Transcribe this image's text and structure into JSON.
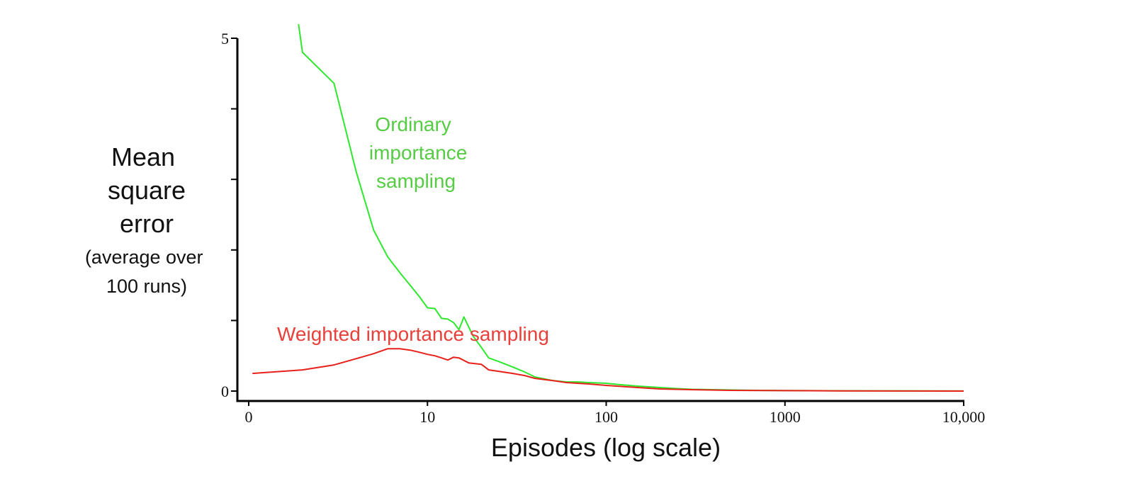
{
  "chart_data": {
    "type": "line",
    "title": "",
    "xlabel": "Episodes (log scale)",
    "ylabel_lines": [
      "Mean",
      "square",
      "error"
    ],
    "ylabel_sub_lines": [
      "(average over",
      "100 runs)"
    ],
    "x_scale": "log",
    "xlim": [
      1,
      10000
    ],
    "ylim": [
      0,
      5
    ],
    "x_ticks": [
      {
        "value": 1,
        "label": "0"
      },
      {
        "value": 10,
        "label": "10"
      },
      {
        "value": 100,
        "label": "100"
      },
      {
        "value": 1000,
        "label": "1000"
      },
      {
        "value": 10000,
        "label": "10,000"
      }
    ],
    "y_ticks": [
      {
        "value": 0,
        "label": "0"
      },
      {
        "value": 1,
        "label": ""
      },
      {
        "value": 2,
        "label": ""
      },
      {
        "value": 3,
        "label": ""
      },
      {
        "value": 4,
        "label": ""
      },
      {
        "value": 5,
        "label": "5"
      }
    ],
    "grid": false,
    "series": [
      {
        "name": "Ordinary importance sampling",
        "label_lines": [
          "Ordinary",
          "importance",
          "sampling"
        ],
        "color": "#2ee82e",
        "label_color": "#55cc44",
        "x": [
          1.9,
          2,
          3,
          4,
          5,
          6,
          7,
          8,
          9,
          10,
          11,
          12,
          13,
          14,
          15,
          16,
          18,
          20,
          22,
          25,
          30,
          35,
          40,
          50,
          60,
          70,
          80,
          100,
          120,
          150,
          200,
          250,
          300,
          400,
          500,
          700,
          1000,
          2000,
          5000,
          10000
        ],
        "y": [
          5.2,
          4.8,
          4.36,
          3.1,
          2.28,
          1.9,
          1.68,
          1.5,
          1.34,
          1.18,
          1.17,
          1.03,
          1.02,
          0.97,
          0.87,
          1.05,
          0.78,
          0.62,
          0.47,
          0.42,
          0.34,
          0.27,
          0.2,
          0.15,
          0.13,
          0.13,
          0.12,
          0.11,
          0.09,
          0.07,
          0.05,
          0.035,
          0.025,
          0.02,
          0.015,
          0.01,
          0.008,
          0.004,
          0.002,
          0.001
        ]
      },
      {
        "name": "Weighted importance sampling",
        "label_lines": [
          "Weighted importance sampling"
        ],
        "color": "#e8201a",
        "label_color": "#e8403a",
        "x": [
          1.05,
          2,
          3,
          4,
          5,
          6,
          7,
          8,
          9,
          10,
          11,
          12,
          13,
          14,
          15,
          17,
          20,
          22,
          25,
          30,
          35,
          40,
          50,
          60,
          80,
          100,
          150,
          200,
          300,
          500,
          1000,
          2000,
          5000,
          10000
        ],
        "y": [
          0.25,
          0.3,
          0.37,
          0.46,
          0.53,
          0.6,
          0.6,
          0.58,
          0.55,
          0.52,
          0.5,
          0.47,
          0.44,
          0.48,
          0.47,
          0.4,
          0.38,
          0.3,
          0.28,
          0.25,
          0.22,
          0.18,
          0.15,
          0.12,
          0.1,
          0.08,
          0.05,
          0.03,
          0.02,
          0.01,
          0.006,
          0.003,
          0.001,
          0.0005
        ]
      }
    ]
  }
}
